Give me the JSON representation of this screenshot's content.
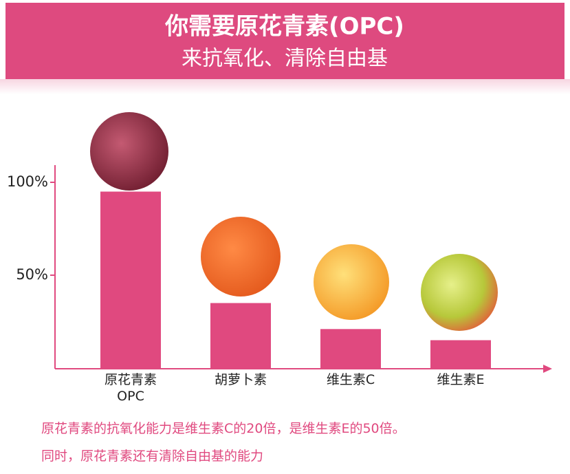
{
  "chart_data": {
    "type": "bar",
    "title": "你需要原花青素(OPC)",
    "subtitle": "来抗氧化、清除自由基",
    "categories": [
      "原花青素 OPC",
      "胡萝卜素",
      "维生素C",
      "维生素E"
    ],
    "values": [
      95,
      35,
      21,
      15
    ],
    "color": "#e0497f",
    "ylim": [
      0,
      110
    ],
    "yticks": [
      {
        "value": 50,
        "label": "50%"
      },
      {
        "value": 100,
        "label": "100%"
      }
    ],
    "annotations": [
      "原花青素的抗氧化能力是维生素C的20倍，是维生素E的50倍。",
      "同时，原花青素还有清除自由基的能力"
    ]
  }
}
